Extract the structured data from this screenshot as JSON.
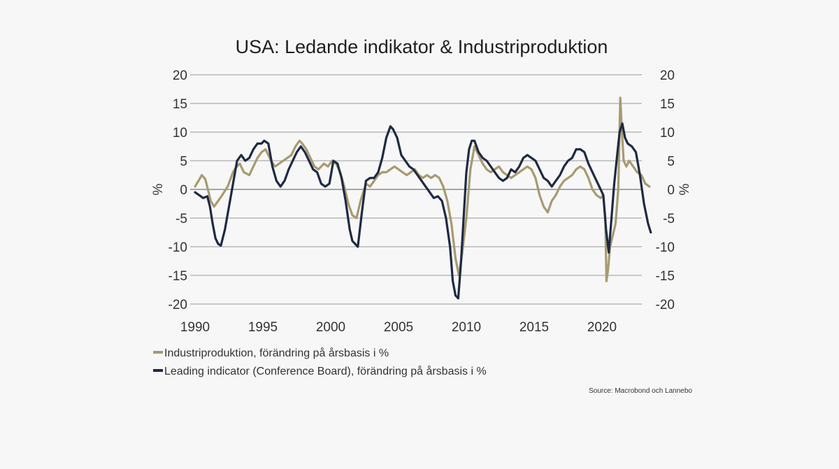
{
  "chart_data": {
    "type": "line",
    "title": "USA: Ledande indikator & Industriproduktion",
    "ylabel_left": "%",
    "ylabel_right": "%",
    "ylim": [
      -20,
      20
    ],
    "y_ticks": [
      20,
      15,
      10,
      5,
      0,
      -5,
      -10,
      -15,
      -20
    ],
    "xlim": [
      1990,
      2024
    ],
    "x_ticks": [
      1990,
      1995,
      2000,
      2005,
      2010,
      2015,
      2020
    ],
    "series": [
      {
        "name": "Industriproduktion, förändring på årsbasis i %",
        "color": "#a89a70",
        "x": [
          1990.0,
          1990.25,
          1990.5,
          1990.75,
          1991.0,
          1991.15,
          1991.4,
          1991.7,
          1992.0,
          1992.4,
          1992.8,
          1993.0,
          1993.3,
          1993.6,
          1994.0,
          1994.3,
          1994.6,
          1994.9,
          1995.2,
          1995.6,
          1995.9,
          1996.2,
          1996.5,
          1996.8,
          1997.1,
          1997.4,
          1997.7,
          1997.9,
          1998.2,
          1998.5,
          1998.8,
          1999.1,
          1999.5,
          1999.8,
          2000.1,
          2000.4,
          2000.7,
          2001.0,
          2001.3,
          2001.6,
          2001.9,
          2002.2,
          2002.6,
          2002.9,
          2003.2,
          2003.5,
          2003.8,
          2004.1,
          2004.4,
          2004.7,
          2005.0,
          2005.3,
          2005.6,
          2005.9,
          2006.2,
          2006.5,
          2006.8,
          2007.1,
          2007.4,
          2007.7,
          2008.0,
          2008.3,
          2008.6,
          2008.9,
          2009.2,
          2009.45,
          2009.7,
          2010.0,
          2010.3,
          2010.6,
          2010.9,
          2011.2,
          2011.5,
          2011.8,
          2012.1,
          2012.4,
          2012.7,
          2013.0,
          2013.3,
          2013.6,
          2013.9,
          2014.2,
          2014.5,
          2014.8,
          2015.1,
          2015.4,
          2015.7,
          2016.0,
          2016.3,
          2016.6,
          2016.9,
          2017.2,
          2017.5,
          2017.8,
          2018.1,
          2018.4,
          2018.7,
          2019.0,
          2019.3,
          2019.6,
          2019.9,
          2020.1,
          2020.25,
          2020.33,
          2020.45,
          2020.6,
          2020.8,
          2021.0,
          2021.2,
          2021.35,
          2021.45,
          2021.6,
          2021.8,
          2022.0,
          2022.3,
          2022.6,
          2022.9,
          2023.2,
          2023.5
        ],
        "values": [
          0.5,
          1.5,
          2.5,
          1.8,
          -0.5,
          -2.0,
          -3.0,
          -2.0,
          -1.0,
          0.5,
          3.0,
          3.8,
          4.5,
          3.0,
          2.5,
          4.0,
          5.5,
          6.5,
          7.0,
          5.0,
          4.0,
          4.5,
          5.0,
          5.5,
          6.0,
          7.5,
          8.5,
          8.0,
          7.0,
          5.5,
          4.0,
          3.5,
          4.5,
          4.0,
          5.0,
          4.5,
          3.0,
          0.5,
          -2.5,
          -4.5,
          -5.0,
          -2.0,
          1.0,
          0.5,
          1.5,
          2.5,
          3.0,
          3.0,
          3.5,
          4.0,
          3.5,
          3.0,
          2.5,
          3.0,
          3.5,
          2.5,
          2.0,
          2.5,
          2.0,
          2.5,
          2.0,
          0.5,
          -2.0,
          -6.0,
          -12.0,
          -15.0,
          -11.0,
          -5.0,
          3.5,
          7.5,
          6.0,
          4.5,
          3.5,
          3.0,
          3.5,
          4.0,
          3.0,
          2.5,
          2.0,
          2.5,
          3.0,
          3.5,
          4.0,
          3.5,
          2.0,
          -1.0,
          -3.0,
          -4.0,
          -2.0,
          -1.0,
          0.5,
          1.5,
          2.0,
          2.5,
          3.5,
          4.0,
          3.5,
          2.0,
          0.0,
          -1.0,
          -1.5,
          -1.0,
          -5.0,
          -16.0,
          -14.0,
          -10.0,
          -8.0,
          -6.0,
          0.0,
          16.0,
          11.0,
          5.0,
          4.0,
          5.0,
          4.0,
          3.0,
          2.5,
          1.0,
          0.5
        ]
      },
      {
        "name": "Leading indicator (Conference Board), förändring på årsbasis i %",
        "color": "#1e2a45",
        "x": [
          1990.0,
          1990.3,
          1990.6,
          1990.9,
          1991.1,
          1991.3,
          1991.5,
          1991.7,
          1991.9,
          1992.2,
          1992.5,
          1992.8,
          1993.1,
          1993.4,
          1993.7,
          1994.0,
          1994.3,
          1994.6,
          1994.9,
          1995.1,
          1995.4,
          1995.7,
          1996.0,
          1996.3,
          1996.6,
          1996.9,
          1997.2,
          1997.5,
          1997.8,
          1998.1,
          1998.4,
          1998.7,
          1999.0,
          1999.3,
          1999.6,
          1999.9,
          2000.2,
          2000.5,
          2000.8,
          2001.1,
          2001.4,
          2001.6,
          2001.8,
          2002.0,
          2002.3,
          2002.6,
          2002.9,
          2003.2,
          2003.5,
          2003.8,
          2004.1,
          2004.4,
          2004.6,
          2004.9,
          2005.2,
          2005.5,
          2005.8,
          2006.1,
          2006.4,
          2006.7,
          2007.0,
          2007.3,
          2007.6,
          2007.9,
          2008.2,
          2008.5,
          2008.8,
          2009.0,
          2009.2,
          2009.4,
          2009.6,
          2009.8,
          2010.0,
          2010.2,
          2010.4,
          2010.6,
          2010.9,
          2011.2,
          2011.5,
          2011.8,
          2012.1,
          2012.4,
          2012.7,
          2013.0,
          2013.3,
          2013.6,
          2013.9,
          2014.2,
          2014.5,
          2014.8,
          2015.1,
          2015.4,
          2015.7,
          2016.0,
          2016.3,
          2016.6,
          2016.9,
          2017.2,
          2017.5,
          2017.8,
          2018.1,
          2018.4,
          2018.7,
          2019.0,
          2019.3,
          2019.6,
          2019.9,
          2020.1,
          2020.3,
          2020.5,
          2020.7,
          2020.9,
          2021.1,
          2021.3,
          2021.5,
          2021.7,
          2021.9,
          2022.2,
          2022.5,
          2022.8,
          2023.1,
          2023.4,
          2023.6
        ],
        "values": [
          -0.5,
          -1.0,
          -1.5,
          -1.2,
          -3.0,
          -6.0,
          -8.5,
          -9.5,
          -9.8,
          -7.0,
          -3.0,
          1.0,
          5.0,
          6.0,
          5.0,
          5.5,
          7.0,
          8.0,
          8.0,
          8.5,
          8.0,
          4.0,
          1.5,
          0.5,
          1.5,
          3.5,
          5.0,
          6.5,
          7.5,
          6.5,
          5.0,
          3.5,
          3.0,
          1.0,
          0.5,
          1.0,
          5.0,
          4.5,
          2.0,
          -2.0,
          -7.0,
          -9.0,
          -9.5,
          -10.0,
          -4.0,
          1.5,
          2.0,
          2.0,
          3.0,
          5.5,
          9.0,
          11.0,
          10.5,
          9.0,
          6.0,
          5.0,
          4.0,
          3.5,
          2.5,
          1.5,
          0.5,
          -0.5,
          -1.5,
          -1.2,
          -2.0,
          -5.0,
          -10.0,
          -16.0,
          -18.5,
          -19.0,
          -13.0,
          -5.0,
          3.0,
          7.0,
          8.5,
          8.5,
          6.5,
          5.5,
          5.0,
          4.0,
          3.0,
          2.0,
          1.5,
          2.0,
          3.5,
          3.0,
          4.0,
          5.5,
          6.0,
          5.5,
          5.0,
          3.5,
          2.0,
          1.5,
          0.5,
          1.5,
          2.5,
          4.0,
          5.0,
          5.5,
          7.0,
          7.0,
          6.5,
          4.5,
          3.0,
          1.5,
          0.0,
          -1.0,
          -7.0,
          -11.0,
          -5.0,
          1.0,
          5.5,
          10.0,
          11.5,
          9.0,
          8.0,
          7.5,
          6.5,
          2.5,
          -2.5,
          -6.0,
          -7.5
        ]
      }
    ],
    "legend": [
      "Industriproduktion, förändring på årsbasis i %",
      "Leading indicator (Conference Board), förändring på årsbasis i %"
    ],
    "legend_position": "bottom-left",
    "source": "Source: Macrobond och Lannebo",
    "grid": true
  }
}
